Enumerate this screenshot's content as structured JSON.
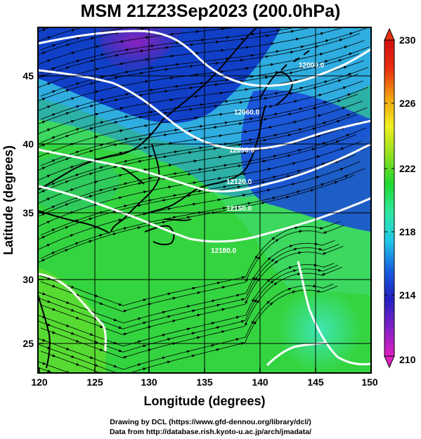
{
  "title": "MSM 21Z23Sep2023 (200.0hPa)",
  "x_axis": {
    "label": "Longitude (degrees)",
    "ticks": [
      "120",
      "125",
      "130",
      "135",
      "140",
      "145",
      "150"
    ],
    "range": [
      120,
      150
    ]
  },
  "y_axis": {
    "label": "Latitude  (degrees)",
    "ticks": [
      "25",
      "30",
      "35",
      "40",
      "45"
    ],
    "range": [
      22.4,
      47.6
    ]
  },
  "colorbar": {
    "labels": [
      "210",
      "214",
      "218",
      "222",
      "226",
      "230"
    ],
    "range": [
      210,
      230
    ],
    "colors": [
      "#e020c0",
      "#8020c8",
      "#2020c0",
      "#1860e0",
      "#20c8e8",
      "#30e8a0",
      "#20d830",
      "#90e020",
      "#f0f020",
      "#f0a010",
      "#e83010",
      "#d01010"
    ]
  },
  "contour_labels": [
    "12000.0",
    "12060.0",
    "12090.0",
    "12120.0",
    "12150.0",
    "12180.0"
  ],
  "credits": {
    "line1": "Drawing by DCL (https://www.gfd-dennou.org/library/dcl/)",
    "line2": "Data from http://database.rish.kyoto-u.ac.jp/arch/jmadata/"
  }
}
